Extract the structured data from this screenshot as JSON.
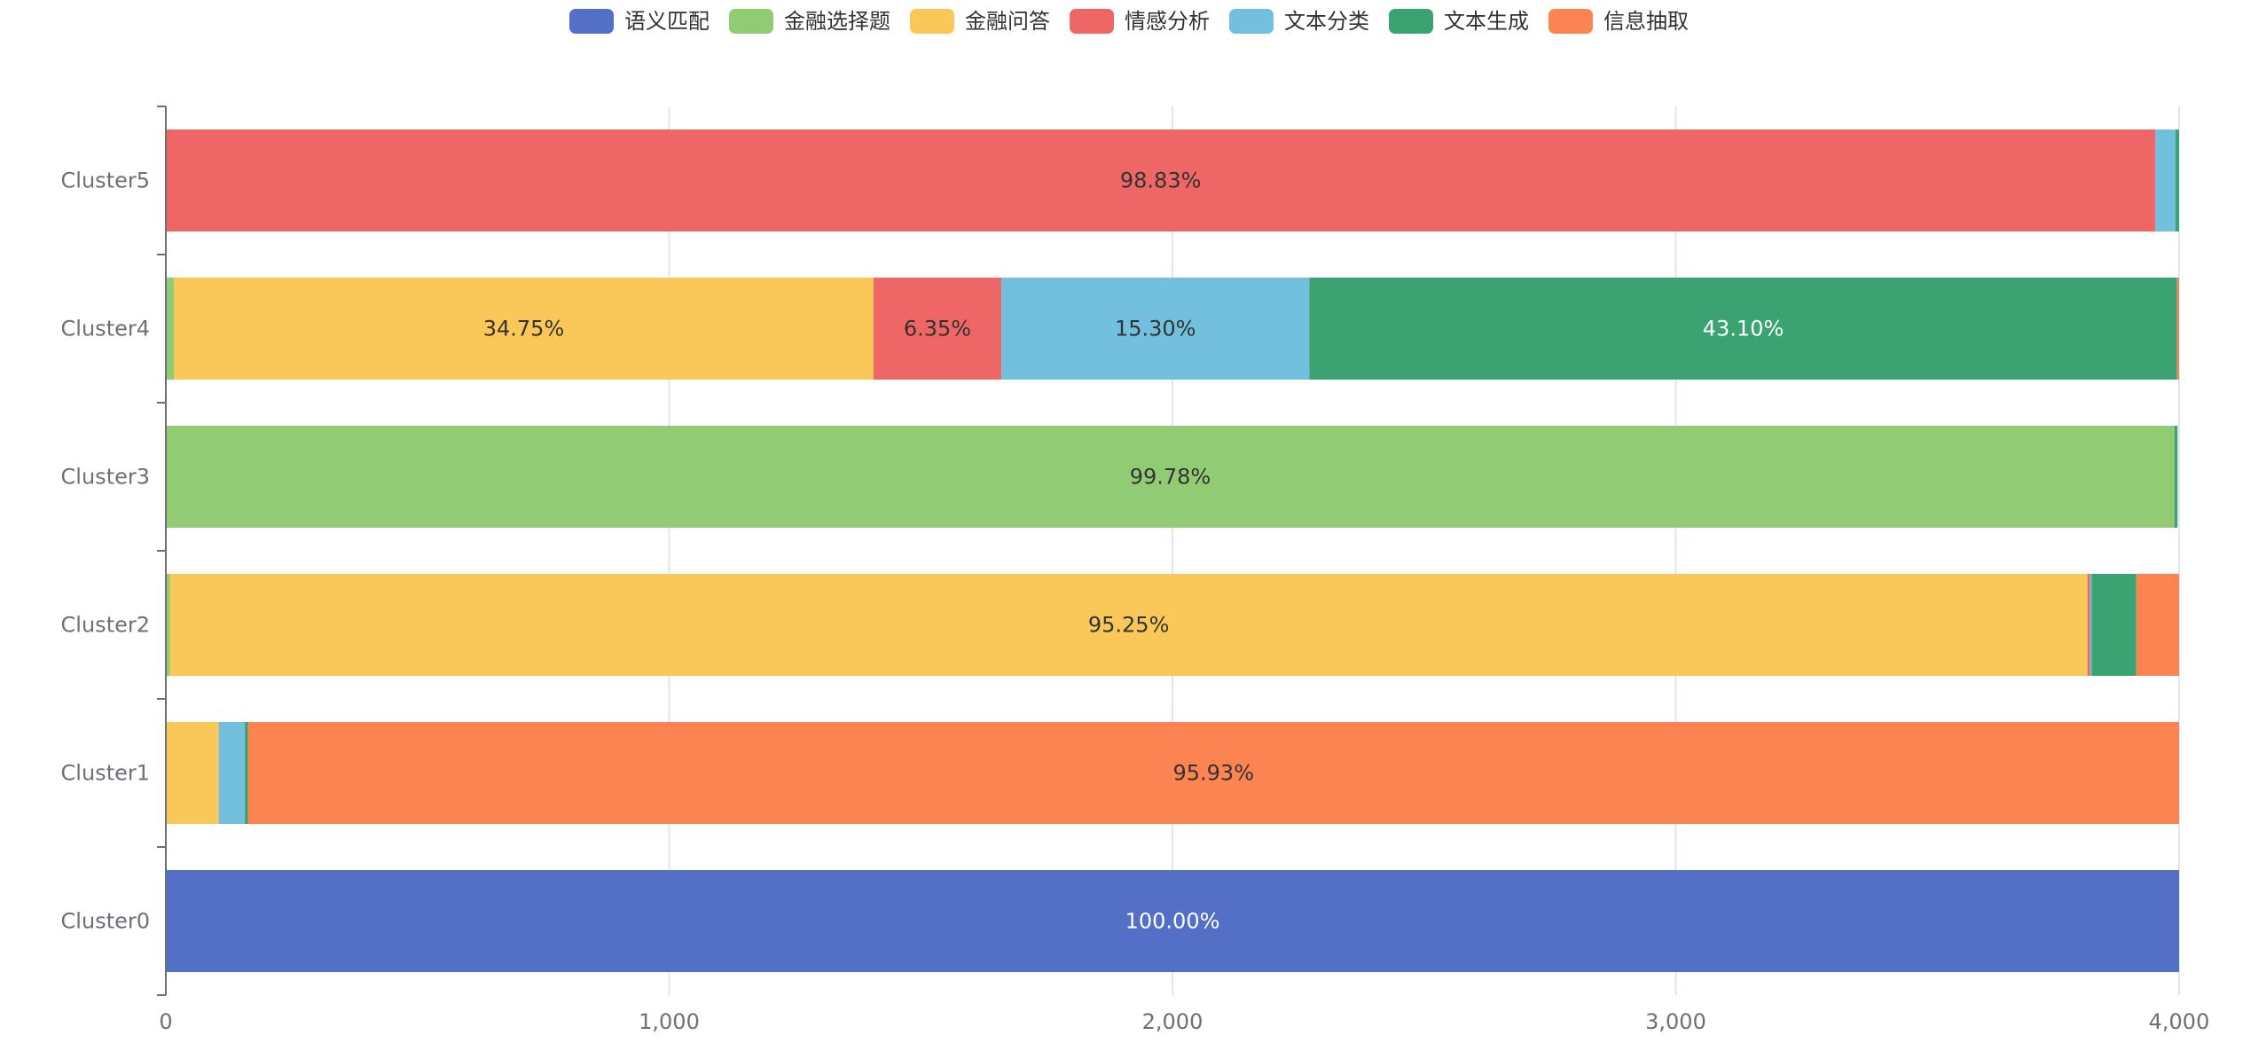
{
  "chart_data": {
    "type": "bar",
    "orientation": "horizontal",
    "stacked": true,
    "legend_position": "top-center",
    "grid": "vertical",
    "categories": [
      "Cluster0",
      "Cluster1",
      "Cluster2",
      "Cluster3",
      "Cluster4",
      "Cluster5"
    ],
    "xlim": [
      0,
      4000
    ],
    "x_ticks": [
      "0",
      "1,000",
      "2,000",
      "3,000",
      "4,000"
    ],
    "x_tick_values": [
      0,
      1000,
      2000,
      3000,
      4000
    ],
    "series": [
      {
        "name": "语义匹配",
        "color": "#5470c6",
        "label_color": "#ffffff",
        "values": [
          4000,
          0,
          0,
          0,
          0,
          0
        ],
        "labels": [
          "100.00%",
          "",
          "",
          "",
          "",
          ""
        ]
      },
      {
        "name": "金融选择题",
        "color": "#91cc75",
        "label_color": "#333333",
        "values": [
          0,
          0,
          8,
          3991,
          16,
          0
        ],
        "labels": [
          "",
          "",
          "",
          "99.78%",
          "",
          ""
        ]
      },
      {
        "name": "金融问答",
        "color": "#fac858",
        "label_color": "#333333",
        "values": [
          0,
          105,
          3810,
          0,
          1390,
          0
        ],
        "labels": [
          "",
          "",
          "95.25%",
          "",
          "34.75%",
          ""
        ]
      },
      {
        "name": "情感分析",
        "color": "#ee6666",
        "label_color": "#333333",
        "values": [
          0,
          0,
          5,
          0,
          254,
          3953
        ],
        "labels": [
          "",
          "",
          "",
          "",
          "6.35%",
          "98.83%"
        ]
      },
      {
        "name": "文本分类",
        "color": "#73c0de",
        "label_color": "#333333",
        "values": [
          0,
          52,
          3,
          0,
          612,
          40
        ],
        "labels": [
          "",
          "",
          "",
          "",
          "15.30%",
          ""
        ]
      },
      {
        "name": "文本生成",
        "color": "#3ba272",
        "label_color": "#ffffff",
        "values": [
          0,
          6,
          89,
          6,
          1724,
          7
        ],
        "labels": [
          "",
          "",
          "",
          "",
          "43.10%",
          ""
        ]
      },
      {
        "name": "信息抽取",
        "color": "#fc8452",
        "label_color": "#333333",
        "values": [
          0,
          3837,
          85,
          0,
          4,
          0
        ],
        "labels": [
          "",
          "95.93%",
          "",
          "",
          "",
          ""
        ]
      }
    ]
  }
}
